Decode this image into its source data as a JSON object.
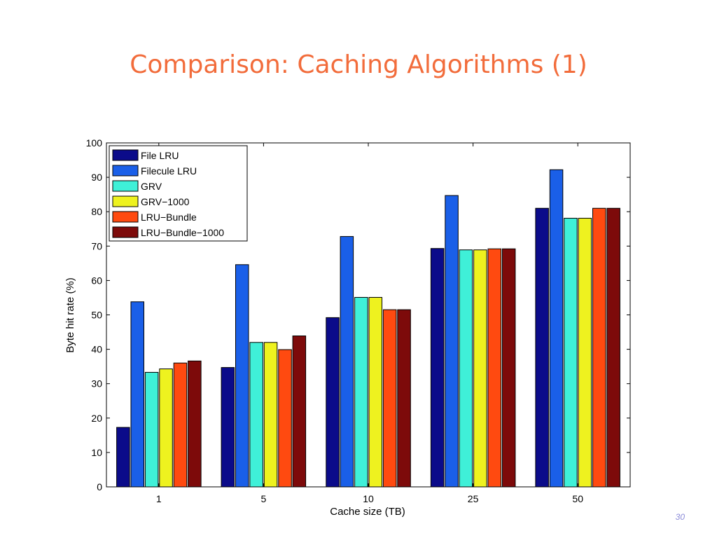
{
  "slide": {
    "title": "Comparison: Caching Algorithms (1)",
    "page_number": "30"
  },
  "chart_data": {
    "type": "bar",
    "xlabel": "Cache size (TB)",
    "ylabel": "Byte hit rate (%)",
    "ylim": [
      0,
      100
    ],
    "yticks": [
      0,
      10,
      20,
      30,
      40,
      50,
      60,
      70,
      80,
      90,
      100
    ],
    "categories": [
      "1",
      "5",
      "10",
      "25",
      "50"
    ],
    "legend_position": "top-left",
    "grid": false,
    "series": [
      {
        "name": "File LRU",
        "color": "#0b0b8a",
        "values": [
          17.3,
          34.7,
          49.2,
          69.3,
          81.0
        ]
      },
      {
        "name": "Filecule LRU",
        "color": "#1a5fe8",
        "values": [
          53.8,
          64.6,
          72.8,
          84.7,
          92.2
        ]
      },
      {
        "name": "GRV",
        "color": "#3ff0d8",
        "values": [
          33.3,
          42.0,
          55.1,
          68.9,
          78.1
        ]
      },
      {
        "name": "GRV−1000",
        "color": "#eef21f",
        "values": [
          34.3,
          42.0,
          55.1,
          68.9,
          78.1
        ]
      },
      {
        "name": "LRU−Bundle",
        "color": "#ff4a10",
        "values": [
          36.0,
          39.9,
          51.5,
          69.2,
          81.0
        ]
      },
      {
        "name": "LRU−Bundle−1000",
        "color": "#7d0a0a",
        "values": [
          36.6,
          43.9,
          51.5,
          69.2,
          81.0
        ]
      }
    ]
  }
}
